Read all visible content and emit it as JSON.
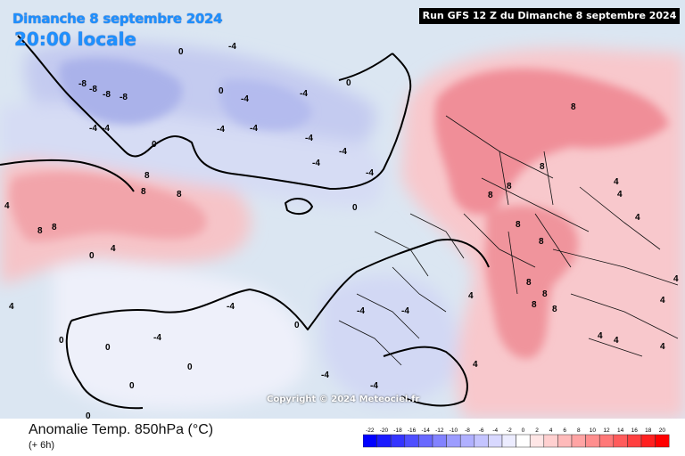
{
  "header": {
    "date": "Dimanche 8 septembre 2024",
    "local_time": "20:00 locale",
    "run_banner": "Run GFS 12 Z du Dimanche 8 septembre 2024"
  },
  "copyright": "Copyright © 2024 Meteociel.fr",
  "footer": {
    "parameter": "Anomalie Temp. 850hPa (°C)",
    "lead_time": "(+ 6h)"
  },
  "legend": {
    "ticks": [
      "-22",
      "-20",
      "-18",
      "-16",
      "-14",
      "-12",
      "-10",
      "-8",
      "-6",
      "-4",
      "-2",
      "0",
      "2",
      "4",
      "6",
      "8",
      "10",
      "12",
      "14",
      "16",
      "18",
      "20"
    ],
    "colors": [
      "#0000ff",
      "#1a1aff",
      "#3434ff",
      "#4e4eff",
      "#6868ff",
      "#8282ff",
      "#9c9cff",
      "#b0b0ff",
      "#c4c4ff",
      "#d8d8ff",
      "#ececff",
      "#ffffff",
      "#ffe6e6",
      "#ffd0d0",
      "#ffbaba",
      "#ffa4a4",
      "#ff8e8e",
      "#ff7878",
      "#ff5c5c",
      "#ff4040",
      "#ff2020",
      "#ff0000"
    ]
  },
  "contour_labels": {
    "greenland_west": [
      "-8",
      "-8",
      "-8",
      "-8",
      "-4",
      "-4"
    ],
    "north_atlantic": [
      "-4",
      "-4",
      "-4",
      "-4",
      "-4",
      "-4",
      "-4",
      "-4",
      "-4",
      "0",
      "0",
      "0",
      "0"
    ],
    "canada": [
      "8",
      "8",
      "8",
      "8",
      "8",
      "4",
      "4",
      "4",
      "0"
    ],
    "scandinavia": [
      "8",
      "8",
      "8",
      "8",
      "8",
      "8",
      "4",
      "4",
      "4",
      "4",
      "4"
    ],
    "central_europe": [
      "8",
      "8",
      "8",
      "8",
      "4",
      "4",
      "4",
      "4",
      "4"
    ],
    "south_west": [
      "-4",
      "-4",
      "-4",
      "-4",
      "-4",
      "-4",
      "0",
      "0",
      "0",
      "0",
      "0",
      "0",
      "0"
    ]
  }
}
